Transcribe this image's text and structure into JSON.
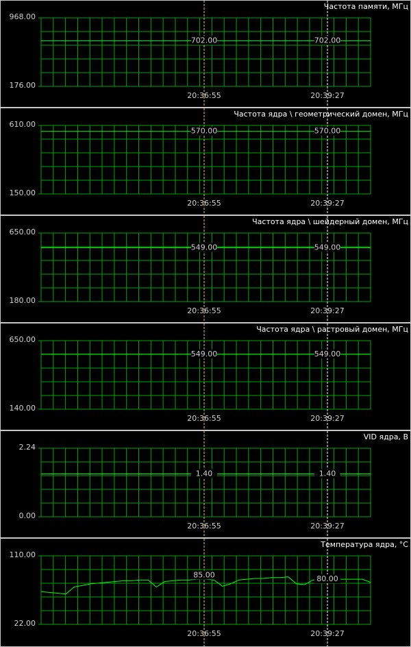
{
  "chart_data": [
    {
      "type": "line",
      "title": "Частота памяти, МГц",
      "values": [
        702,
        702
      ],
      "color": "#00ff00",
      "ylim": [
        176,
        968
      ],
      "yticks": [
        {
          "value": 968,
          "label": "968.00"
        },
        {
          "value": 176,
          "label": "176.00"
        }
      ],
      "cursor_times": [
        "20:36:55",
        "20:39:27"
      ],
      "cursor_values": [
        702,
        702
      ],
      "cursor_value_labels": [
        "702.00",
        "702.00"
      ]
    },
    {
      "type": "line",
      "title": "Частота ядра \\ геометрический домен, МГц",
      "values": [
        570,
        570
      ],
      "color": "#00ff00",
      "ylim": [
        150,
        610
      ],
      "yticks": [
        {
          "value": 610,
          "label": "610.00"
        },
        {
          "value": 150,
          "label": "150.00"
        }
      ],
      "cursor_times": [
        "20:36:55",
        "20:39:27"
      ],
      "cursor_values": [
        570,
        570
      ],
      "cursor_value_labels": [
        "570.00",
        "570.00"
      ]
    },
    {
      "type": "line",
      "title": "Частота ядра \\ шейдерный домен, МГц",
      "values": [
        549,
        549
      ],
      "color": "#00ff00",
      "ylim": [
        180,
        650
      ],
      "yticks": [
        {
          "value": 650,
          "label": "650.00"
        },
        {
          "value": 180,
          "label": "180.00"
        }
      ],
      "cursor_times": [
        "20:36:55",
        "20:39:27"
      ],
      "cursor_values": [
        549,
        549
      ],
      "cursor_value_labels": [
        "549.00",
        "549.00"
      ]
    },
    {
      "type": "line",
      "title": "Частота ядра \\ растровый домен, МГц",
      "values": [
        549,
        549
      ],
      "color": "#00ff00",
      "ylim": [
        140,
        650
      ],
      "yticks": [
        {
          "value": 650,
          "label": "650.00"
        },
        {
          "value": 140,
          "label": "140.00"
        }
      ],
      "cursor_times": [
        "20:36:55",
        "20:39:27"
      ],
      "cursor_values": [
        549,
        549
      ],
      "cursor_value_labels": [
        "549.00",
        "549.00"
      ]
    },
    {
      "type": "line",
      "title": "VID ядра, В",
      "values": [
        1.4,
        1.4
      ],
      "color": "#00ff00",
      "ylim": [
        0,
        2.24
      ],
      "yticks": [
        {
          "value": 2.24,
          "label": "2.24"
        },
        {
          "value": 0,
          "label": "0.00"
        }
      ],
      "cursor_times": [
        "20:36:55",
        "20:39:27"
      ],
      "cursor_values": [
        1.4,
        1.4
      ],
      "cursor_value_labels": [
        "1.40",
        "1.40"
      ]
    },
    {
      "type": "line",
      "title": "Температура ядра, °C",
      "values": [
        64,
        63,
        62,
        61,
        70,
        72,
        74,
        75,
        76,
        77,
        78,
        78,
        79,
        79,
        70,
        77,
        78,
        79,
        79,
        80,
        80,
        79,
        71,
        74,
        79,
        80,
        81,
        81,
        82,
        82,
        83,
        74,
        73,
        79,
        80,
        80,
        80,
        80,
        80,
        80,
        76
      ],
      "color": "#00ff00",
      "ylim": [
        22,
        110
      ],
      "yticks": [
        {
          "value": 110,
          "label": "110.00"
        },
        {
          "value": 22,
          "label": "22.00"
        }
      ],
      "cursor_times": [
        "20:36:55",
        "20:39:27"
      ],
      "cursor_values": [
        85,
        80
      ],
      "cursor_value_labels": [
        "85.00",
        "80.00"
      ]
    }
  ]
}
